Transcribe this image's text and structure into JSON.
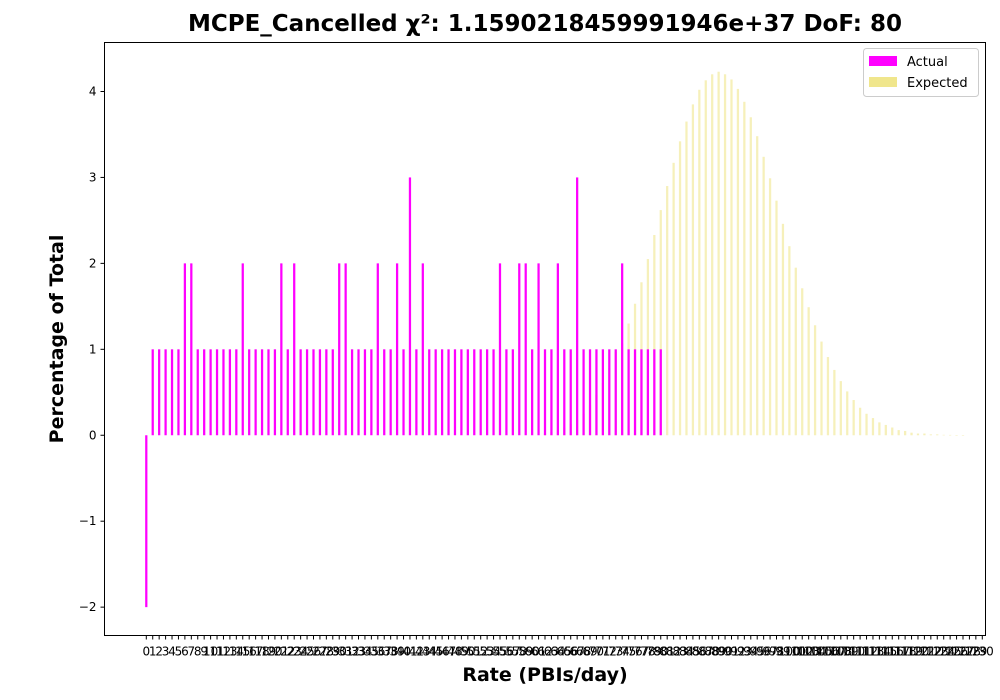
{
  "chart_data": {
    "type": "bar",
    "title": "MCPE_Cancelled χ²: 1.1590218459991946e+37 DoF: 80",
    "xlabel": "Rate (PBIs/day)",
    "ylabel": "Percentage of Total",
    "ylim": [
      -2.33,
      4.57
    ],
    "xlim": [
      -6.5,
      130.5
    ],
    "legend_position": "top-right",
    "x_ticks": [
      0,
      1,
      2,
      3,
      4,
      5,
      6,
      7,
      8,
      9,
      10,
      11,
      12,
      13,
      14,
      15,
      16,
      17,
      18,
      19,
      20,
      21,
      22,
      23,
      24,
      25,
      26,
      27,
      28,
      29,
      30,
      31,
      32,
      33,
      34,
      35,
      36,
      37,
      38,
      39,
      40,
      41,
      42,
      43,
      44,
      45,
      46,
      47,
      48,
      49,
      50,
      51,
      52,
      53,
      54,
      55,
      56,
      57,
      58,
      59,
      60,
      61,
      62,
      63,
      64,
      65,
      66,
      67,
      68,
      69,
      70,
      71,
      72,
      73,
      74,
      75,
      76,
      77,
      78,
      79,
      80,
      81,
      82,
      83,
      84,
      85,
      86,
      87,
      88,
      89,
      90,
      91,
      92,
      93,
      94,
      95,
      96,
      97,
      98,
      99,
      100,
      101,
      102,
      103,
      104,
      105,
      106,
      107,
      108,
      109,
      110,
      111,
      112,
      113,
      114,
      115,
      116,
      117,
      118,
      119,
      120,
      121,
      122,
      123,
      124,
      125,
      126,
      127,
      128,
      129,
      130
    ],
    "y_ticks": [
      -2,
      -1,
      0,
      1,
      2,
      3,
      4
    ],
    "series": [
      {
        "name": "Actual",
        "color": "#ff00ff",
        "x": [
          0,
          1,
          2,
          3,
          4,
          5,
          6,
          7,
          8,
          9,
          10,
          11,
          12,
          13,
          14,
          15,
          16,
          17,
          18,
          19,
          20,
          21,
          22,
          23,
          24,
          25,
          26,
          27,
          28,
          29,
          30,
          31,
          32,
          33,
          34,
          35,
          36,
          37,
          38,
          39,
          40,
          41,
          42,
          43,
          44,
          45,
          46,
          47,
          48,
          49,
          50,
          51,
          52,
          53,
          54,
          55,
          56,
          57,
          58,
          59,
          60,
          61,
          62,
          63,
          64,
          65,
          66,
          67,
          68,
          69,
          70,
          71,
          72,
          73,
          74,
          75,
          76,
          77,
          78,
          79,
          80
        ],
        "values": [
          -2,
          1,
          1,
          1,
          1,
          1,
          2,
          2,
          1,
          1,
          1,
          1,
          1,
          1,
          1,
          2,
          1,
          1,
          1,
          1,
          1,
          2,
          1,
          2,
          1,
          1,
          1,
          1,
          1,
          1,
          2,
          2,
          1,
          1,
          1,
          1,
          2,
          1,
          1,
          2,
          1,
          3,
          1,
          2,
          1,
          1,
          1,
          1,
          1,
          1,
          1,
          1,
          1,
          1,
          1,
          2,
          1,
          1,
          2,
          2,
          1,
          2,
          1,
          1,
          2,
          1,
          1,
          3,
          1,
          1,
          1,
          1,
          1,
          1,
          2,
          1,
          1,
          1,
          1,
          1,
          1
        ]
      },
      {
        "name": "Expected",
        "color": "#f0e68c",
        "x": [
          62,
          63,
          64,
          65,
          66,
          67,
          68,
          69,
          70,
          71,
          72,
          73,
          74,
          75,
          76,
          77,
          78,
          79,
          80,
          81,
          82,
          83,
          84,
          85,
          86,
          87,
          88,
          89,
          90,
          91,
          92,
          93,
          94,
          95,
          96,
          97,
          98,
          99,
          100,
          101,
          102,
          103,
          104,
          105,
          106,
          107,
          108,
          109,
          110,
          111,
          112,
          113,
          114,
          115,
          116,
          117,
          118,
          119,
          120,
          121,
          122,
          123,
          124,
          125,
          126,
          127
        ],
        "values": [
          0.02,
          0.04,
          0.06,
          0.09,
          0.13,
          0.18,
          0.25,
          0.35,
          0.47,
          0.61,
          0.78,
          0.97,
          1.07,
          1.3,
          1.53,
          1.78,
          2.05,
          2.33,
          2.62,
          2.9,
          3.17,
          3.42,
          3.65,
          3.85,
          4.02,
          4.13,
          4.2,
          4.23,
          4.2,
          4.14,
          4.03,
          3.88,
          3.7,
          3.48,
          3.24,
          2.99,
          2.73,
          2.46,
          2.2,
          1.95,
          1.71,
          1.49,
          1.28,
          1.09,
          0.91,
          0.76,
          0.63,
          0.51,
          0.41,
          0.32,
          0.25,
          0.2,
          0.15,
          0.12,
          0.09,
          0.06,
          0.05,
          0.03,
          0.02,
          0.02,
          0.01,
          0.01,
          0.005,
          0.004,
          0.003,
          0.002
        ]
      }
    ]
  }
}
